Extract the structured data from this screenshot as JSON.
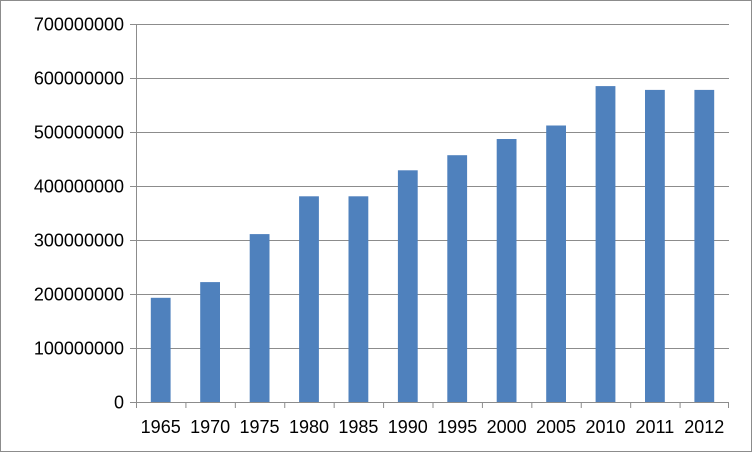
{
  "chart_data": {
    "type": "bar",
    "title": "",
    "xlabel": "",
    "ylabel": "",
    "categories": [
      "1965",
      "1970",
      "1975",
      "1980",
      "1985",
      "1990",
      "1995",
      "2000",
      "2005",
      "2010",
      "2011",
      "2012"
    ],
    "values": [
      193000000,
      222000000,
      311000000,
      381000000,
      381000000,
      429000000,
      457000000,
      487000000,
      512000000,
      585000000,
      578000000,
      578000000
    ],
    "ylim": [
      0,
      700000000
    ],
    "yticks": [
      0,
      100000000,
      200000000,
      300000000,
      400000000,
      500000000,
      600000000,
      700000000
    ],
    "ytick_labels": [
      "0",
      "100000000",
      "200000000",
      "300000000",
      "400000000",
      "500000000",
      "600000000",
      "700000000"
    ],
    "grid": true,
    "legend": "none",
    "bar_color": "#4F81BD",
    "grid_color": "#8C8C8C",
    "axis_color": "#8C8C8C"
  }
}
